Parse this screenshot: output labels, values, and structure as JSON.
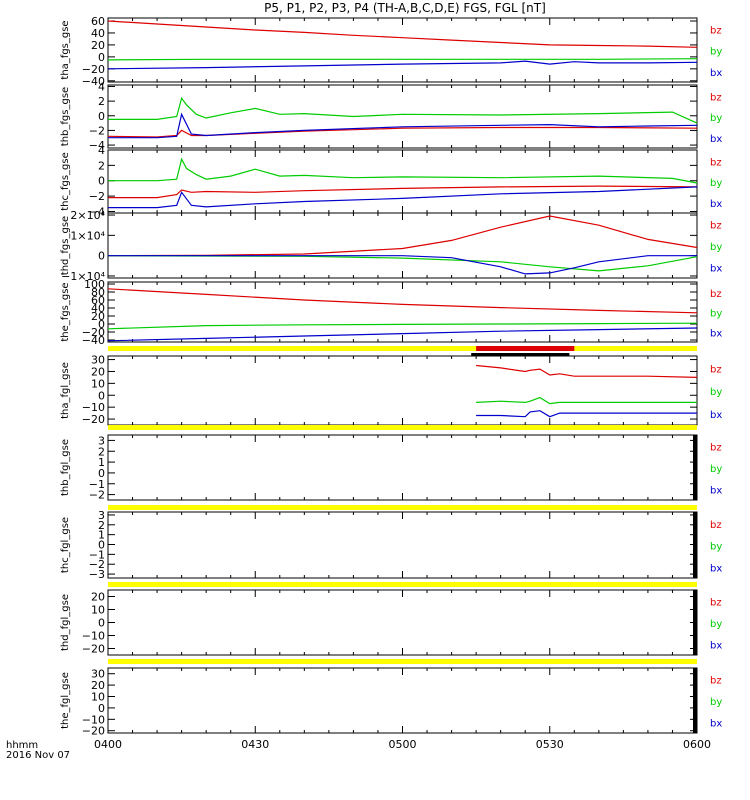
{
  "chart_data": [
    {
      "id": "p1",
      "type": "line",
      "ylabel": "tha_fgs_gse",
      "yticks": [
        60,
        40,
        20,
        0,
        -20,
        -40
      ],
      "ylim": [
        -42,
        65
      ],
      "series": [
        {
          "name": "bz",
          "color": "#dd0000",
          "x": [
            0,
            10,
            20,
            30,
            40,
            50,
            60,
            70,
            80,
            90,
            100,
            110,
            120
          ],
          "y": [
            60,
            55,
            50,
            45,
            41,
            36,
            32,
            28,
            24,
            20,
            19,
            18,
            16
          ]
        },
        {
          "name": "by",
          "color": "#00cc00",
          "x": [
            0,
            20,
            40,
            60,
            80,
            100,
            120
          ],
          "y": [
            -5,
            -4,
            -4,
            -4,
            -4,
            -4,
            -3
          ]
        },
        {
          "name": "bx",
          "color": "#0000cc",
          "x": [
            0,
            20,
            40,
            60,
            80,
            85,
            90,
            95,
            100,
            110,
            120
          ],
          "y": [
            -20,
            -18,
            -15,
            -12,
            -10,
            -7,
            -12,
            -8,
            -10,
            -10,
            -9
          ]
        }
      ]
    },
    {
      "id": "p2",
      "type": "line",
      "ylabel": "thb_fgs_gse",
      "yticks": [
        4,
        2,
        0,
        -2,
        -4
      ],
      "ylim": [
        -4.4,
        4.2
      ],
      "series": [
        {
          "name": "bz",
          "color": "#dd0000",
          "x": [
            0,
            10,
            14,
            15,
            17,
            20,
            30,
            40,
            60,
            80,
            100,
            120
          ],
          "y": [
            -2.8,
            -2.9,
            -2.7,
            -2.0,
            -2.7,
            -2.7,
            -2.4,
            -2.1,
            -1.7,
            -1.6,
            -1.6,
            -1.7
          ]
        },
        {
          "name": "by",
          "color": "#00cc00",
          "x": [
            0,
            10,
            14,
            15,
            16,
            18,
            20,
            25,
            30,
            35,
            40,
            50,
            60,
            80,
            100,
            115,
            120
          ],
          "y": [
            -0.5,
            -0.5,
            -0.1,
            2.4,
            1.5,
            0.2,
            -0.3,
            0.4,
            1.0,
            0.2,
            0.3,
            -0.1,
            0.2,
            0.1,
            0.3,
            0.5,
            -1.0
          ]
        },
        {
          "name": "bx",
          "color": "#0000cc",
          "x": [
            0,
            10,
            14,
            15,
            17,
            20,
            30,
            40,
            60,
            80,
            90,
            100,
            110,
            120
          ],
          "y": [
            -3.0,
            -3.0,
            -2.8,
            0.2,
            -2.5,
            -2.7,
            -2.3,
            -2.0,
            -1.5,
            -1.3,
            -1.2,
            -1.5,
            -1.4,
            -1.3
          ]
        }
      ]
    },
    {
      "id": "p3",
      "type": "line",
      "ylabel": "thc_fgs_gse",
      "yticks": [
        4,
        2,
        0,
        -2,
        -4
      ],
      "ylim": [
        -4.2,
        4.0
      ],
      "series": [
        {
          "name": "bz",
          "color": "#dd0000",
          "x": [
            0,
            10,
            14,
            15,
            17,
            20,
            30,
            40,
            60,
            80,
            100,
            120
          ],
          "y": [
            -2.2,
            -2.2,
            -1.8,
            -1.2,
            -1.5,
            -1.4,
            -1.5,
            -1.3,
            -1.0,
            -0.8,
            -0.7,
            -0.8
          ]
        },
        {
          "name": "by",
          "color": "#00cc00",
          "x": [
            0,
            10,
            14,
            15,
            16,
            18,
            20,
            25,
            30,
            35,
            40,
            50,
            60,
            80,
            100,
            115,
            120
          ],
          "y": [
            0,
            0,
            0.2,
            2.8,
            1.6,
            0.8,
            0.2,
            0.6,
            1.5,
            0.6,
            0.7,
            0.4,
            0.5,
            0.4,
            0.6,
            0.3,
            -0.3
          ]
        },
        {
          "name": "bx",
          "color": "#0000cc",
          "x": [
            0,
            10,
            14,
            15,
            17,
            20,
            30,
            40,
            60,
            80,
            100,
            120
          ],
          "y": [
            -3.5,
            -3.5,
            -3.2,
            -1.5,
            -3.2,
            -3.4,
            -3.0,
            -2.7,
            -2.3,
            -1.7,
            -1.4,
            -0.8
          ]
        }
      ]
    },
    {
      "id": "p4",
      "type": "line",
      "ylabel": "thd_fgs_gse",
      "yticks": [
        20000,
        10000,
        0,
        -10000
      ],
      "yticklabels": [
        "2×10⁴",
        "1×10⁴",
        "0",
        "−1×10⁴"
      ],
      "ylim": [
        -11000,
        21000
      ],
      "series": [
        {
          "name": "bz",
          "color": "#dd0000",
          "x": [
            0,
            20,
            40,
            60,
            70,
            80,
            90,
            100,
            110,
            120
          ],
          "y": [
            0,
            200,
            800,
            3500,
            7500,
            14000,
            19500,
            15000,
            8000,
            4000
          ]
        },
        {
          "name": "by",
          "color": "#00cc00",
          "x": [
            0,
            40,
            60,
            80,
            90,
            100,
            110,
            120
          ],
          "y": [
            0,
            -300,
            -1200,
            -3000,
            -5500,
            -7500,
            -5000,
            -500
          ]
        },
        {
          "name": "bx",
          "color": "#0000cc",
          "x": [
            0,
            40,
            60,
            70,
            80,
            85,
            90,
            95,
            100,
            110,
            111,
            120
          ],
          "y": [
            0,
            0,
            0,
            -1000,
            -5500,
            -9000,
            -8500,
            -6000,
            -3000,
            0,
            0,
            0
          ]
        }
      ]
    },
    {
      "id": "p5",
      "type": "line",
      "ylabel": "the_fgs_gse",
      "yticks": [
        100,
        80,
        60,
        40,
        20,
        0,
        -20,
        -40
      ],
      "ylim": [
        -45,
        105
      ],
      "series": [
        {
          "name": "bz",
          "color": "#dd0000",
          "x": [
            0,
            20,
            40,
            60,
            80,
            100,
            120
          ],
          "y": [
            88,
            74,
            60,
            49,
            41,
            34,
            28
          ]
        },
        {
          "name": "by",
          "color": "#00cc00",
          "x": [
            0,
            20,
            40,
            60,
            80,
            100,
            120
          ],
          "y": [
            -12,
            -4,
            -2,
            -1,
            0,
            1,
            2
          ]
        },
        {
          "name": "bx",
          "color": "#0000cc",
          "x": [
            0,
            20,
            40,
            60,
            80,
            100,
            120
          ],
          "y": [
            -42,
            -36,
            -30,
            -24,
            -18,
            -14,
            -10
          ]
        }
      ]
    },
    {
      "id": "p6",
      "type": "line",
      "ylabel": "tha_fgl_gse",
      "yticks": [
        30,
        20,
        10,
        0,
        -10,
        -20
      ],
      "ylim": [
        -25,
        33
      ],
      "series": [
        {
          "name": "bz",
          "color": "#dd0000",
          "x": [
            75,
            80,
            85,
            86,
            88,
            90,
            92,
            95,
            100,
            110,
            120
          ],
          "y": [
            25,
            23,
            20,
            21,
            22,
            17,
            18,
            16,
            16,
            16,
            15
          ]
        },
        {
          "name": "by",
          "color": "#00cc00",
          "x": [
            75,
            80,
            85,
            86,
            88,
            90,
            92,
            95,
            100,
            110,
            120
          ],
          "y": [
            -6,
            -5,
            -6,
            -5,
            -2,
            -7,
            -6,
            -6,
            -6,
            -6,
            -6
          ]
        },
        {
          "name": "bx",
          "color": "#0000cc",
          "x": [
            75,
            80,
            85,
            86,
            88,
            90,
            92,
            95,
            100,
            110,
            120
          ],
          "y": [
            -17,
            -17,
            -18,
            -14,
            -13,
            -18,
            -15,
            -15,
            -15,
            -15,
            -15
          ]
        }
      ]
    },
    {
      "id": "p7",
      "type": "line",
      "ylabel": "thb_fgl_gse",
      "yticks": [
        3,
        2,
        1,
        0,
        -1,
        -2
      ],
      "ylim": [
        -2.5,
        3.5
      ],
      "series": []
    },
    {
      "id": "p8",
      "type": "line",
      "ylabel": "thc_fgl_gse",
      "yticks": [
        3,
        2,
        1,
        0,
        -1,
        -2,
        -3
      ],
      "ylim": [
        -3.4,
        3.3
      ],
      "series": []
    },
    {
      "id": "p9",
      "type": "line",
      "ylabel": "thd_fgl_gse",
      "yticks": [
        20,
        10,
        0,
        -10,
        -20
      ],
      "ylim": [
        -25,
        25
      ],
      "series": []
    },
    {
      "id": "p10",
      "type": "line",
      "ylabel": "the_fgl_gse",
      "yticks": [
        30,
        20,
        10,
        0,
        -10,
        -20
      ],
      "ylim": [
        -22,
        35
      ],
      "series": []
    }
  ],
  "title": "P5, P1, P2, P3, P4 (TH-A,B,C,D,E) FGS, FGL [nT]",
  "legend": [
    {
      "label": "bz",
      "color": "#dd0000"
    },
    {
      "label": "by",
      "color": "#00cc00"
    },
    {
      "label": "bx",
      "color": "#0000cc"
    }
  ],
  "xaxis": {
    "range": [
      0,
      120
    ],
    "ticks": [
      0,
      30,
      60,
      90,
      120
    ],
    "ticklabels": [
      "0400",
      "0430",
      "0500",
      "0530",
      "0600"
    ],
    "label": "hhmm",
    "date": "2016 Nov 07"
  },
  "mode_bars": {
    "color_bg": "#ffff00",
    "red_range": [
      75,
      95
    ],
    "black_range": [
      74,
      94
    ]
  }
}
